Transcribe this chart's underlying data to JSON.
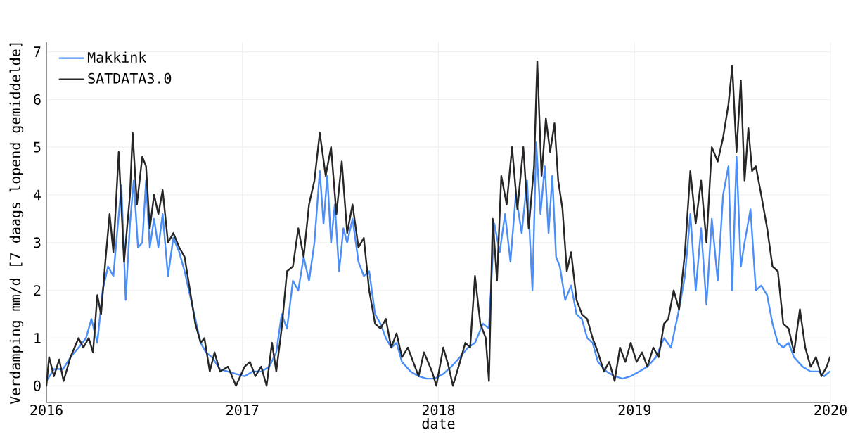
{
  "chart_data": {
    "type": "line",
    "xlabel": "date",
    "ylabel": "Verdamping mm/d [7 daags lopend gemiddelde]",
    "xlim": [
      "2016",
      "2020"
    ],
    "xticks": [
      "2016",
      "2017",
      "2018",
      "2019",
      "2020"
    ],
    "ylim": [
      -0.35,
      7.2
    ],
    "yticks": [
      0,
      1,
      2,
      3,
      4,
      5,
      6,
      7
    ],
    "grid": true,
    "legend": "top left",
    "marker": "none",
    "line_style": "solid",
    "series": [
      {
        "name": "Makkink",
        "color": "#4c8ef7",
        "x": [
          "2016-01-01",
          "2016-01-15",
          "2016-02-01",
          "2016-02-15",
          "2016-03-01",
          "2016-03-15",
          "2016-03-25",
          "2016-04-05",
          "2016-04-15",
          "2016-04-25",
          "2016-05-05",
          "2016-05-12",
          "2016-05-20",
          "2016-05-28",
          "2016-06-05",
          "2016-06-12",
          "2016-06-20",
          "2016-06-28",
          "2016-07-05",
          "2016-07-12",
          "2016-07-20",
          "2016-07-28",
          "2016-08-05",
          "2016-08-15",
          "2016-08-25",
          "2016-09-05",
          "2016-09-15",
          "2016-09-25",
          "2016-10-05",
          "2016-10-15",
          "2016-10-25",
          "2016-11-05",
          "2016-11-20",
          "2016-12-05",
          "2016-12-20",
          "2017-01-05",
          "2017-01-20",
          "2017-02-05",
          "2017-02-20",
          "2017-03-05",
          "2017-03-15",
          "2017-03-25",
          "2017-04-05",
          "2017-04-15",
          "2017-04-25",
          "2017-05-05",
          "2017-05-15",
          "2017-05-25",
          "2017-06-01",
          "2017-06-08",
          "2017-06-15",
          "2017-06-22",
          "2017-06-30",
          "2017-07-08",
          "2017-07-15",
          "2017-07-25",
          "2017-08-05",
          "2017-08-15",
          "2017-08-25",
          "2017-09-05",
          "2017-09-15",
          "2017-09-25",
          "2017-10-05",
          "2017-10-15",
          "2017-10-25",
          "2017-11-10",
          "2017-11-25",
          "2017-12-10",
          "2017-12-25",
          "2018-01-10",
          "2018-01-25",
          "2018-02-10",
          "2018-02-25",
          "2018-03-10",
          "2018-03-25",
          "2018-04-05",
          "2018-04-15",
          "2018-04-25",
          "2018-05-05",
          "2018-05-15",
          "2018-05-25",
          "2018-06-05",
          "2018-06-15",
          "2018-06-25",
          "2018-07-02",
          "2018-07-10",
          "2018-07-18",
          "2018-07-25",
          "2018-08-01",
          "2018-08-08",
          "2018-08-15",
          "2018-08-25",
          "2018-09-05",
          "2018-09-15",
          "2018-09-25",
          "2018-10-05",
          "2018-10-15",
          "2018-10-25",
          "2018-11-10",
          "2018-11-25",
          "2018-12-10",
          "2018-12-25",
          "2019-01-10",
          "2019-01-25",
          "2019-02-10",
          "2019-02-25",
          "2019-03-10",
          "2019-03-25",
          "2019-04-05",
          "2019-04-15",
          "2019-04-25",
          "2019-05-05",
          "2019-05-15",
          "2019-05-25",
          "2019-06-05",
          "2019-06-15",
          "2019-06-25",
          "2019-07-02",
          "2019-07-10",
          "2019-07-18",
          "2019-07-25",
          "2019-08-05",
          "2019-08-15",
          "2019-08-25",
          "2019-09-05",
          "2019-09-15",
          "2019-09-25",
          "2019-10-05",
          "2019-10-15",
          "2019-10-25",
          "2019-11-10",
          "2019-11-25",
          "2019-12-10",
          "2019-12-20",
          "2019-12-31"
        ],
        "values": [
          0.1,
          0.35,
          0.35,
          0.6,
          0.8,
          1.0,
          1.4,
          0.9,
          2.0,
          2.5,
          2.3,
          3.2,
          4.2,
          1.8,
          3.4,
          4.3,
          2.9,
          3.0,
          4.3,
          2.9,
          3.5,
          2.9,
          3.6,
          2.3,
          3.1,
          2.8,
          2.4,
          1.9,
          1.4,
          0.9,
          0.7,
          0.6,
          0.35,
          0.3,
          0.25,
          0.2,
          0.3,
          0.3,
          0.4,
          0.7,
          1.5,
          1.2,
          2.2,
          2.0,
          2.7,
          2.2,
          3.0,
          4.5,
          3.4,
          4.4,
          3.0,
          3.8,
          2.4,
          3.3,
          3.0,
          3.5,
          2.6,
          2.3,
          2.4,
          1.5,
          1.3,
          1.0,
          0.8,
          0.9,
          0.5,
          0.3,
          0.2,
          0.15,
          0.15,
          0.25,
          0.4,
          0.6,
          0.8,
          0.9,
          1.3,
          1.2,
          3.4,
          2.8,
          3.6,
          2.6,
          4.0,
          3.2,
          4.3,
          2.0,
          5.1,
          3.6,
          4.6,
          3.2,
          4.4,
          2.7,
          2.5,
          1.8,
          2.1,
          1.5,
          1.4,
          1.0,
          0.9,
          0.5,
          0.3,
          0.2,
          0.15,
          0.2,
          0.3,
          0.4,
          0.6,
          1.0,
          0.8,
          1.6,
          2.3,
          3.6,
          2.0,
          3.3,
          1.7,
          3.5,
          2.2,
          4.0,
          4.6,
          2.0,
          4.8,
          2.5,
          3.0,
          3.7,
          2.0,
          2.1,
          1.9,
          1.3,
          0.9,
          0.8,
          0.9,
          0.6,
          0.4,
          0.3,
          0.3,
          0.2,
          0.3
        ]
      },
      {
        "name": "SATDATA3.0",
        "color": "#262626",
        "x": [
          "2016-01-01",
          "2016-01-06",
          "2016-01-15",
          "2016-01-25",
          "2016-02-02",
          "2016-02-15",
          "2016-03-01",
          "2016-03-10",
          "2016-03-20",
          "2016-03-28",
          "2016-04-05",
          "2016-04-12",
          "2016-04-20",
          "2016-04-28",
          "2016-05-05",
          "2016-05-15",
          "2016-05-25",
          "2016-06-05",
          "2016-06-10",
          "2016-06-18",
          "2016-06-28",
          "2016-07-05",
          "2016-07-12",
          "2016-07-20",
          "2016-07-28",
          "2016-08-05",
          "2016-08-15",
          "2016-08-25",
          "2016-09-05",
          "2016-09-15",
          "2016-09-25",
          "2016-10-05",
          "2016-10-15",
          "2016-10-22",
          "2016-11-01",
          "2016-11-10",
          "2016-11-20",
          "2016-12-05",
          "2016-12-20",
          "2017-01-05",
          "2017-01-15",
          "2017-01-25",
          "2017-02-05",
          "2017-02-15",
          "2017-02-25",
          "2017-03-05",
          "2017-03-15",
          "2017-03-25",
          "2017-04-05",
          "2017-04-15",
          "2017-04-25",
          "2017-05-05",
          "2017-05-15",
          "2017-05-25",
          "2017-06-05",
          "2017-06-15",
          "2017-06-25",
          "2017-07-05",
          "2017-07-15",
          "2017-07-25",
          "2017-08-05",
          "2017-08-15",
          "2017-08-25",
          "2017-09-05",
          "2017-09-15",
          "2017-09-25",
          "2017-10-05",
          "2017-10-15",
          "2017-10-25",
          "2017-11-05",
          "2017-11-15",
          "2017-11-25",
          "2017-12-05",
          "2017-12-20",
          "2017-12-28",
          "2018-01-10",
          "2018-01-20",
          "2018-01-28",
          "2018-02-10",
          "2018-02-20",
          "2018-03-01",
          "2018-03-10",
          "2018-03-20",
          "2018-03-30",
          "2018-04-05",
          "2018-04-12",
          "2018-04-20",
          "2018-04-28",
          "2018-05-08",
          "2018-05-18",
          "2018-05-28",
          "2018-06-08",
          "2018-06-18",
          "2018-06-28",
          "2018-07-04",
          "2018-07-12",
          "2018-07-20",
          "2018-07-28",
          "2018-08-05",
          "2018-08-12",
          "2018-08-20",
          "2018-08-28",
          "2018-09-05",
          "2018-09-15",
          "2018-09-25",
          "2018-10-05",
          "2018-10-15",
          "2018-10-25",
          "2018-11-05",
          "2018-11-15",
          "2018-11-25",
          "2018-12-05",
          "2018-12-15",
          "2018-12-25",
          "2019-01-05",
          "2019-01-15",
          "2019-01-25",
          "2019-02-05",
          "2019-02-15",
          "2019-02-25",
          "2019-03-05",
          "2019-03-15",
          "2019-03-25",
          "2019-04-05",
          "2019-04-15",
          "2019-04-25",
          "2019-05-05",
          "2019-05-15",
          "2019-05-25",
          "2019-06-05",
          "2019-06-15",
          "2019-06-25",
          "2019-07-02",
          "2019-07-10",
          "2019-07-18",
          "2019-07-25",
          "2019-08-01",
          "2019-08-08",
          "2019-08-15",
          "2019-08-25",
          "2019-09-05",
          "2019-09-15",
          "2019-09-25",
          "2019-10-05",
          "2019-10-15",
          "2019-10-25",
          "2019-11-05",
          "2019-11-15",
          "2019-11-25",
          "2019-12-05",
          "2019-12-15",
          "2019-12-25",
          "2019-12-31"
        ],
        "values": [
          0.0,
          0.6,
          0.2,
          0.55,
          0.1,
          0.6,
          1.0,
          0.8,
          1.0,
          0.7,
          1.9,
          1.5,
          2.6,
          3.6,
          2.8,
          4.9,
          2.6,
          4.0,
          5.3,
          3.8,
          4.8,
          4.6,
          3.3,
          4.0,
          3.6,
          4.1,
          3.0,
          3.2,
          2.9,
          2.7,
          2.0,
          1.3,
          0.9,
          1.0,
          0.3,
          0.7,
          0.3,
          0.4,
          0.0,
          0.4,
          0.5,
          0.2,
          0.4,
          0.0,
          0.9,
          0.3,
          1.2,
          2.4,
          2.5,
          3.3,
          2.7,
          3.8,
          4.3,
          5.3,
          4.4,
          5.0,
          3.6,
          4.7,
          3.2,
          3.8,
          2.9,
          3.1,
          2.0,
          1.3,
          1.2,
          1.4,
          0.8,
          1.1,
          0.6,
          0.8,
          0.5,
          0.2,
          0.7,
          0.3,
          0.0,
          0.8,
          0.4,
          0.0,
          0.5,
          0.9,
          0.8,
          2.3,
          1.3,
          1.0,
          0.1,
          3.5,
          2.2,
          4.4,
          3.8,
          5.0,
          3.7,
          5.0,
          3.3,
          4.6,
          6.8,
          4.4,
          5.6,
          4.9,
          5.5,
          4.3,
          3.7,
          2.4,
          2.8,
          1.8,
          1.5,
          1.4,
          1.0,
          0.7,
          0.3,
          0.5,
          0.1,
          0.8,
          0.5,
          0.9,
          0.5,
          0.7,
          0.4,
          0.8,
          0.6,
          1.3,
          1.4,
          2.0,
          1.6,
          2.8,
          4.5,
          3.4,
          4.3,
          3.0,
          5.0,
          4.7,
          5.2,
          5.9,
          6.7,
          4.9,
          6.4,
          4.3,
          5.4,
          4.5,
          4.6,
          4.0,
          3.3,
          2.5,
          2.4,
          1.3,
          1.2,
          0.7,
          1.6,
          0.8,
          0.4,
          0.6,
          0.2,
          0.4,
          0.6
        ]
      }
    ]
  }
}
